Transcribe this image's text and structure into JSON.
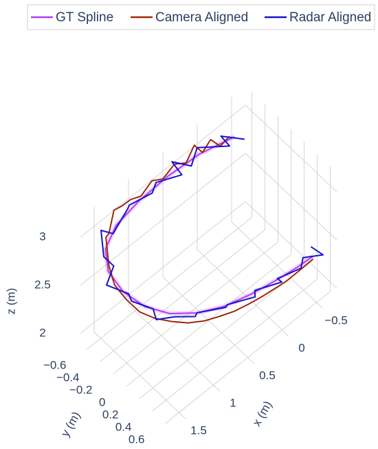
{
  "chart_data": {
    "type": "scatter3d",
    "legend": "top",
    "grid": true,
    "xlabel": "x (m)",
    "ylabel": "y (m)",
    "zlabel": "z (m)",
    "xlim": [
      -0.7,
      1.7
    ],
    "ylim": [
      -0.7,
      0.7
    ],
    "zlim": [
      1.9,
      3.2
    ],
    "xticks": [
      {
        "value": -0.5,
        "label": "−0.5"
      },
      0,
      0.5,
      1,
      1.5
    ],
    "yticks": [
      {
        "value": -0.6,
        "label": "−0.6"
      },
      {
        "value": -0.4,
        "label": "−0.4"
      },
      {
        "value": -0.2,
        "label": "−0.2"
      },
      0,
      0.2,
      0.4,
      0.6
    ],
    "zticks": [
      2,
      2.5,
      3
    ],
    "series": [
      {
        "name": "GT Spline",
        "color": "#b63cf0",
        "x": [
          -0.35,
          0.05,
          0.45,
          0.85,
          1.2,
          1.45,
          1.58,
          1.6,
          1.52,
          1.35,
          1.1,
          0.8,
          0.45,
          0.1,
          -0.2,
          -0.45
        ],
        "y": [
          -0.5,
          -0.62,
          -0.68,
          -0.7,
          -0.68,
          -0.58,
          -0.4,
          -0.15,
          0.1,
          0.3,
          0.45,
          0.55,
          0.6,
          0.62,
          0.62,
          0.6
        ],
        "z": [
          3.0,
          2.97,
          2.93,
          2.89,
          2.85,
          2.81,
          2.77,
          2.73,
          2.69,
          2.65,
          2.61,
          2.57,
          2.53,
          2.49,
          2.45,
          2.41
        ]
      },
      {
        "name": "Camera Aligned",
        "color": "#a0280a",
        "x": [
          -0.3,
          -0.2,
          -0.1,
          0.0,
          0.1,
          0.2,
          0.35,
          0.5,
          0.65,
          0.8,
          0.95,
          1.1,
          1.25,
          1.38,
          1.5,
          1.57,
          1.62,
          1.6,
          1.55,
          1.45,
          1.32,
          1.18,
          1.02,
          0.85,
          0.68,
          0.5,
          0.32,
          0.15,
          -0.02,
          -0.18,
          -0.32,
          -0.45
        ],
        "y": [
          -0.52,
          -0.56,
          -0.6,
          -0.62,
          -0.64,
          -0.66,
          -0.68,
          -0.7,
          -0.71,
          -0.72,
          -0.72,
          -0.7,
          -0.66,
          -0.6,
          -0.52,
          -0.4,
          -0.26,
          -0.1,
          0.05,
          0.18,
          0.3,
          0.4,
          0.48,
          0.54,
          0.58,
          0.61,
          0.63,
          0.64,
          0.64,
          0.63,
          0.62,
          0.6
        ],
        "z": [
          3.02,
          2.95,
          3.05,
          2.96,
          3.08,
          2.94,
          3.0,
          2.92,
          2.98,
          2.9,
          2.95,
          2.98,
          3.05,
          2.92,
          3.0,
          2.82,
          2.74,
          2.68,
          2.62,
          2.58,
          2.55,
          2.52,
          2.5,
          2.49,
          2.47,
          2.46,
          2.45,
          2.44,
          2.42,
          2.41,
          2.4,
          2.38
        ]
      },
      {
        "name": "Radar Aligned",
        "color": "#1414d2",
        "x": [
          -0.45,
          -0.25,
          -0.3,
          0.05,
          0.2,
          0.35,
          0.3,
          0.6,
          0.75,
          0.95,
          1.05,
          1.3,
          1.4,
          1.55,
          1.5,
          1.7,
          1.55,
          1.62,
          1.45,
          1.5,
          1.3,
          1.15,
          1.05,
          0.8,
          0.7,
          0.45,
          0.35,
          0.1,
          0.05,
          -0.2,
          -0.35,
          -0.5,
          -0.4
        ],
        "y": [
          -0.45,
          -0.6,
          -0.52,
          -0.65,
          -0.58,
          -0.72,
          -0.62,
          -0.7,
          -0.6,
          -0.74,
          -0.66,
          -0.62,
          -0.7,
          -0.5,
          -0.4,
          -0.3,
          -0.12,
          0.0,
          0.15,
          0.25,
          0.32,
          0.48,
          0.4,
          0.58,
          0.5,
          0.66,
          0.55,
          0.7,
          0.58,
          0.68,
          0.55,
          0.7,
          0.62
        ],
        "z": [
          2.95,
          3.0,
          2.92,
          3.02,
          2.96,
          3.0,
          2.9,
          2.94,
          2.98,
          2.88,
          2.95,
          2.86,
          2.9,
          2.84,
          2.78,
          2.76,
          2.7,
          2.74,
          2.66,
          2.64,
          2.6,
          2.62,
          2.55,
          2.58,
          2.5,
          2.54,
          2.48,
          2.52,
          2.45,
          2.48,
          2.42,
          2.46,
          2.55
        ]
      }
    ]
  }
}
